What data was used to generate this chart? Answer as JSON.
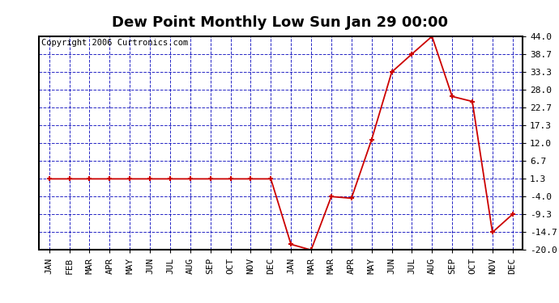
{
  "title": "Dew Point Monthly Low Sun Jan 29 00:00",
  "copyright": "Copyright 2006 Curtronics.com",
  "x_labels": [
    "JAN",
    "FEB",
    "MAR",
    "APR",
    "MAY",
    "JUN",
    "JUL",
    "AUG",
    "SEP",
    "OCT",
    "NOV",
    "DEC",
    "JAN",
    "MAR",
    "MAR",
    "APR",
    "MAY",
    "JUN",
    "JUL",
    "AUG",
    "SEP",
    "OCT",
    "NOV",
    "DEC"
  ],
  "y_values": [
    1.3,
    1.3,
    1.3,
    1.3,
    1.3,
    1.3,
    1.3,
    1.3,
    1.3,
    1.3,
    1.3,
    1.3,
    -18.3,
    -20.0,
    -4.0,
    -4.5,
    13.0,
    33.3,
    38.7,
    44.0,
    26.0,
    24.5,
    -14.7,
    -9.3
  ],
  "yticks": [
    44.0,
    38.7,
    33.3,
    28.0,
    22.7,
    17.3,
    12.0,
    6.7,
    1.3,
    -4.0,
    -9.3,
    -14.7,
    -20.0
  ],
  "ylim": [
    -20.0,
    44.0
  ],
  "line_color": "#cc0000",
  "marker_color": "#cc0000",
  "bg_color": "#ffffff",
  "grid_color": "#0000bb",
  "title_fontsize": 13,
  "copyright_fontsize": 7.5,
  "tick_fontsize": 8,
  "title_bg": "#ffffff",
  "plot_bg": "#ffffff"
}
